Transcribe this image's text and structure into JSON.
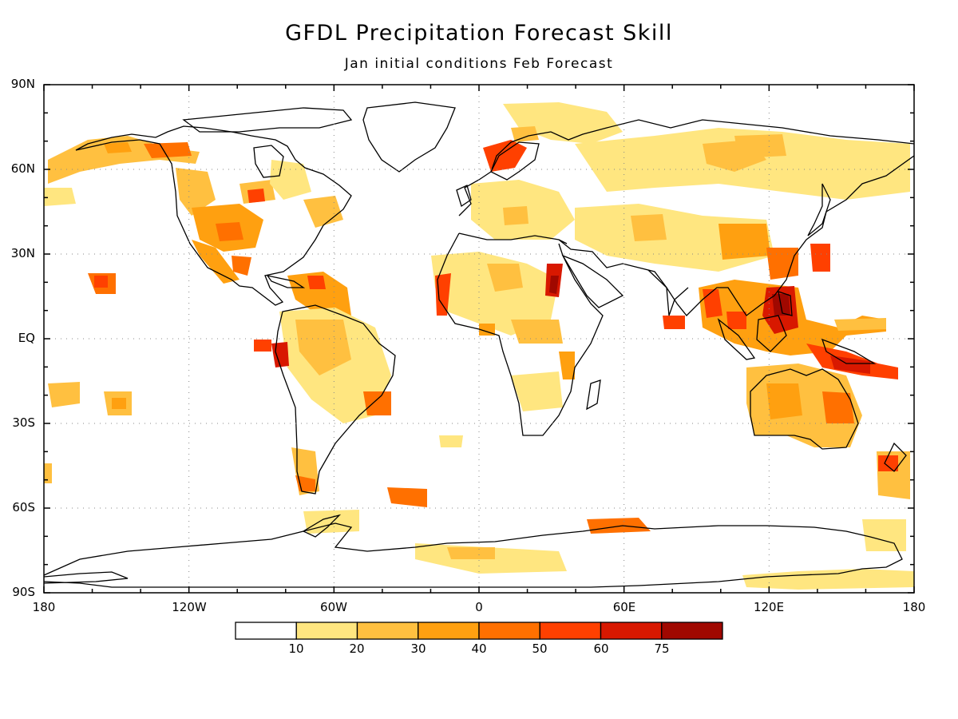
{
  "title": "GFDL Precipitation Forecast Skill",
  "subtitle": "Jan initial conditions  Feb Forecast",
  "lat_labels": [
    "90N",
    "60N",
    "30N",
    "EQ",
    "30S",
    "60S",
    "90S"
  ],
  "lon_labels": [
    "180",
    "120W",
    "60W",
    "0",
    "60E",
    "120E",
    "180"
  ],
  "colorbar": {
    "colors": [
      "#ffffff",
      "#ffe680",
      "#ffc040",
      "#ffa010",
      "#ff7000",
      "#ff4000",
      "#d81800",
      "#a00800"
    ],
    "labels": [
      "10",
      "20",
      "30",
      "40",
      "50",
      "60",
      "75"
    ]
  }
}
